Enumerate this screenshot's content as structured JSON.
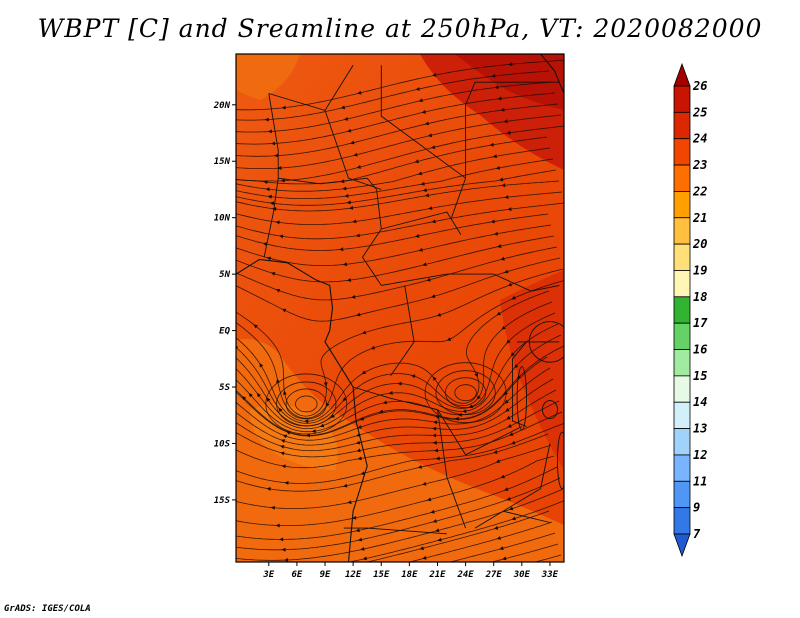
{
  "title": "WBPT [C] and Sreamline at 250hPa, VT: 2020082000",
  "credit": "GrADS: IGES/COLA",
  "map": {
    "lon_range": [
      -0.5,
      34.5
    ],
    "lat_range": [
      -20.5,
      24.5
    ],
    "lon_ticks": [
      "3E",
      "6E",
      "9E",
      "12E",
      "15E",
      "18E",
      "21E",
      "24E",
      "27E",
      "30E",
      "33E"
    ],
    "lat_ticks": [
      "20N",
      "15N",
      "10N",
      "5N",
      "EQ",
      "5S",
      "10S",
      "15S"
    ],
    "dominant_wbpt_c": "23-24",
    "features": [
      {
        "name": "cyclonic-eddy-west",
        "lon": 7,
        "lat": -6.5
      },
      {
        "name": "cyclonic-eddy-east",
        "lon": 24,
        "lat": -5.5
      }
    ]
  },
  "colorbar": {
    "labels": [
      "26",
      "25",
      "24",
      "23",
      "22",
      "21",
      "20",
      "19",
      "18",
      "17",
      "16",
      "15",
      "14",
      "13",
      "12",
      "11",
      "9",
      "7"
    ],
    "colors": [
      "#a50000",
      "#c81400",
      "#dc2800",
      "#f04600",
      "#ff6e00",
      "#ffa000",
      "#ffc040",
      "#ffe078",
      "#fff5b4",
      "#32b432",
      "#64d264",
      "#a0eba0",
      "#e6fae6",
      "#d2f0fa",
      "#a0d2fa",
      "#78b4ff",
      "#5096f5",
      "#3278e6",
      "#1e5ad2"
    ],
    "scale": "discrete"
  }
}
